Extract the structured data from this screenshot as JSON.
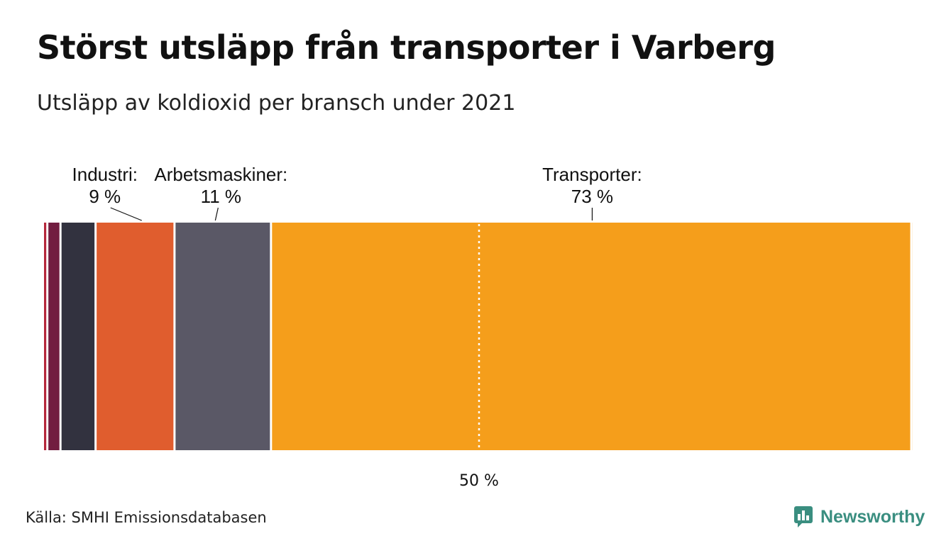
{
  "header": {
    "title": "Störst utsläpp från transporter i Varberg",
    "subtitle": "Utsläpp av koldioxid per bransch under 2021"
  },
  "chart_data": {
    "type": "bar",
    "orientation": "horizontal-stacked-100",
    "unit": "%",
    "segments": [
      {
        "value": 0.5,
        "color": "#b5273b",
        "label": "",
        "value_label": ""
      },
      {
        "value": 1.5,
        "color": "#721d40",
        "label": "",
        "value_label": ""
      },
      {
        "value": 4,
        "color": "#32323f",
        "label": "",
        "value_label": ""
      },
      {
        "value": 9,
        "color": "#e05d2e",
        "label": "Industri:",
        "value_label": "9 %"
      },
      {
        "value": 11,
        "color": "#5a5866",
        "label": "Arbetsmaskiner:",
        "value_label": "11 %"
      },
      {
        "value": 73,
        "color": "#f59e1b",
        "label": "Transporter:",
        "value_label": "73 %"
      },
      {
        "value": 0.2,
        "color": "#fbe6c4",
        "label": "",
        "value_label": ""
      }
    ],
    "reference_line": {
      "value": 50,
      "label": "50 %",
      "style": "dotted",
      "color": "#ffffff"
    },
    "xlim": [
      0,
      100
    ]
  },
  "footer": {
    "source": "Källa: SMHI Emissionsdatabasen",
    "brand": "Newsworthy",
    "brand_color": "#3a8e80",
    "brand_icon": "newsworthy-logo-icon"
  }
}
